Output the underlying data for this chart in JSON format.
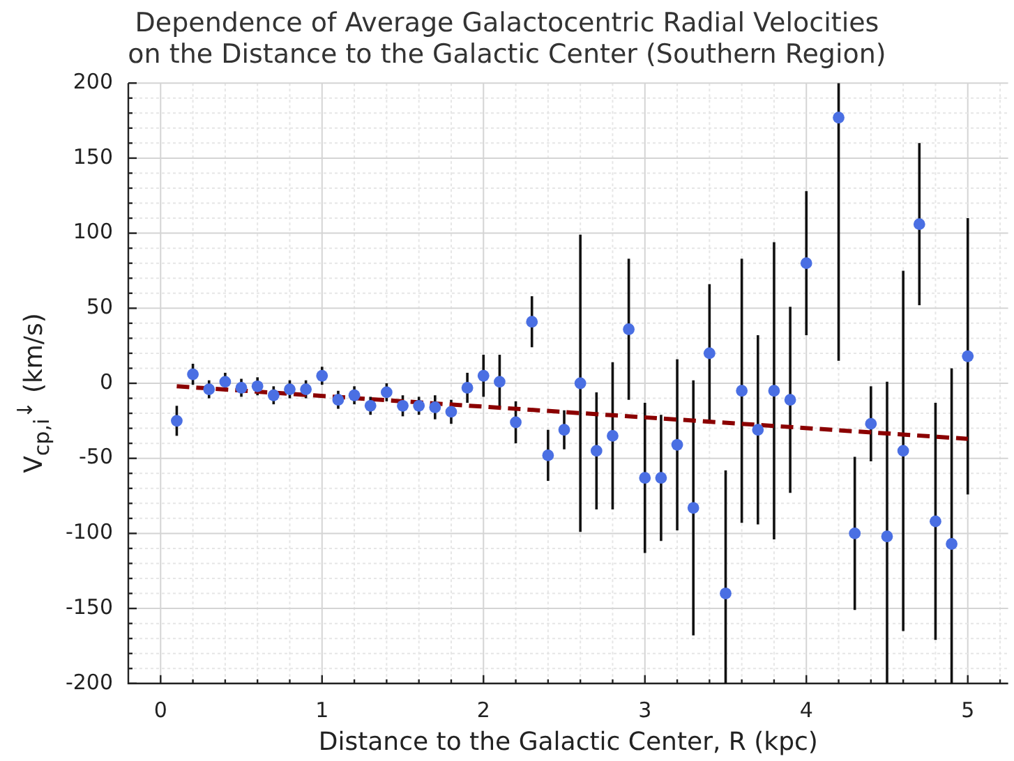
{
  "chart_data": {
    "type": "scatter",
    "title": "Dependence of Average Galactocentric Radial Velocities\non the Distance to the Galactic Center (Southern Region)",
    "xlabel": "Distance to the Galactic Center, R (kpc)",
    "ylabel": "V$_{cp,i}$$^{↓}$ (km/s)",
    "x": [
      0.1,
      0.2,
      0.3,
      0.4,
      0.5,
      0.6,
      0.7,
      0.8,
      0.9,
      1.0,
      1.1,
      1.2,
      1.3,
      1.4,
      1.5,
      1.6,
      1.7,
      1.8,
      1.9,
      2.0,
      2.1,
      2.2,
      2.3,
      2.4,
      2.5,
      2.6,
      2.7,
      2.8,
      2.9,
      3.0,
      3.1,
      3.2,
      3.3,
      3.4,
      3.5,
      3.6,
      3.7,
      3.8,
      3.9,
      4.0,
      4.1,
      4.2,
      4.3,
      4.4,
      4.5,
      4.6,
      4.7,
      4.8,
      4.9,
      5.0
    ],
    "series": [
      {
        "type": "scatter",
        "color": "#4a6fe3",
        "marker": "circle",
        "values": [
          -25,
          6,
          -4,
          1,
          -3,
          -2,
          -8,
          -4,
          -4,
          5,
          -11,
          -8,
          -15,
          -6,
          -15,
          -15,
          -16,
          -19,
          -3,
          5,
          1,
          -26,
          41,
          -48,
          -31,
          0,
          -45,
          -35,
          36,
          -63,
          -63,
          -41,
          -83,
          20,
          -140,
          -5,
          -31,
          -5,
          -11,
          80,
          null,
          177,
          -100,
          -27,
          -102,
          -45,
          106,
          -92,
          -107,
          18
        ],
        "errors": [
          10,
          7,
          6,
          6,
          6,
          6,
          6,
          6,
          6,
          6,
          6,
          6,
          6,
          6,
          7,
          6,
          8,
          8,
          10,
          14,
          18,
          14,
          17,
          17,
          13,
          99,
          39,
          49,
          47,
          50,
          42,
          57,
          85,
          46,
          [
            -200,
            -58
          ],
          88,
          63,
          99,
          62,
          48,
          null,
          [
            15,
            200
          ],
          51,
          25,
          [
            -200,
            1
          ],
          120,
          54,
          79,
          [
            -200,
            10
          ],
          92
        ]
      },
      {
        "type": "line",
        "color": "#8b0000",
        "marker": "none",
        "line_style": "dashed",
        "x": [
          0.1,
          5.0
        ],
        "values": [
          -2,
          -37
        ]
      }
    ],
    "xlim": [
      -0.2,
      5.25
    ],
    "ylim": [
      -200,
      200
    ],
    "xticks": [
      0,
      {
        "value": 0.2,
        "label": null
      },
      {
        "value": 0.4,
        "label": null
      },
      {
        "value": 0.6,
        "label": null
      },
      {
        "value": 0.8,
        "label": null
      },
      1,
      {
        "value": 1.2,
        "label": null
      },
      {
        "value": 1.4,
        "label": null
      },
      {
        "value": 1.6,
        "label": null
      },
      {
        "value": 1.8,
        "label": null
      },
      2,
      {
        "value": 2.2,
        "label": null
      },
      {
        "value": 2.4,
        "label": null
      },
      {
        "value": 2.6,
        "label": null
      },
      {
        "value": 2.8,
        "label": null
      },
      3,
      {
        "value": 3.2,
        "label": null
      },
      {
        "value": 3.4,
        "label": null
      },
      {
        "value": 3.6,
        "label": null
      },
      {
        "value": 3.8,
        "label": null
      },
      4,
      {
        "value": 4.2,
        "label": null
      },
      {
        "value": 4.4,
        "label": null
      },
      {
        "value": 4.6,
        "label": null
      },
      {
        "value": 4.8,
        "label": null
      },
      5,
      {
        "value": 5.2,
        "label": null
      }
    ],
    "yticks": [
      -200,
      {
        "value": -190,
        "label": null
      },
      {
        "value": -180,
        "label": null
      },
      {
        "value": -170,
        "label": null
      },
      {
        "value": -160,
        "label": null
      },
      -150,
      {
        "value": -140,
        "label": null
      },
      {
        "value": -130,
        "label": null
      },
      {
        "value": -120,
        "label": null
      },
      {
        "value": -110,
        "label": null
      },
      -100,
      {
        "value": -90,
        "label": null
      },
      {
        "value": -80,
        "label": null
      },
      {
        "value": -70,
        "label": null
      },
      {
        "value": -60,
        "label": null
      },
      -50,
      {
        "value": -40,
        "label": null
      },
      {
        "value": -30,
        "label": null
      },
      {
        "value": -20,
        "label": null
      },
      {
        "value": -10,
        "label": null
      },
      0,
      {
        "value": 10,
        "label": null
      },
      {
        "value": 20,
        "label": null
      },
      {
        "value": 30,
        "label": null
      },
      {
        "value": 40,
        "label": null
      },
      50,
      {
        "value": 60,
        "label": null
      },
      {
        "value": 70,
        "label": null
      },
      {
        "value": 80,
        "label": null
      },
      {
        "value": 90,
        "label": null
      },
      100,
      {
        "value": 110,
        "label": null
      },
      {
        "value": 120,
        "label": null
      },
      {
        "value": 130,
        "label": null
      },
      {
        "value": 140,
        "label": null
      },
      150,
      {
        "value": 160,
        "label": null
      },
      {
        "value": 170,
        "label": null
      },
      {
        "value": 180,
        "label": null
      },
      {
        "value": 190,
        "label": null
      },
      200
    ],
    "grid": true,
    "legend": false
  }
}
